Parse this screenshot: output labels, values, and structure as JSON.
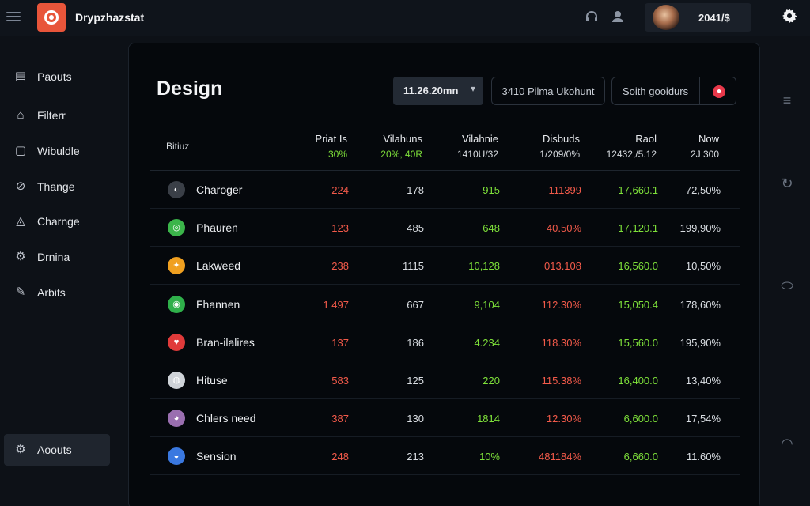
{
  "app": {
    "name": "Drypzhazstat"
  },
  "user": {
    "value": "2041/$"
  },
  "sidebar": {
    "items": [
      {
        "label": "Paouts",
        "icon": "document-icon"
      },
      {
        "label": "Filterr",
        "icon": "home-icon"
      },
      {
        "label": "Wibuldle",
        "icon": "folder-icon"
      },
      {
        "label": "Thange",
        "icon": "tag-icon"
      },
      {
        "label": "Charnge",
        "icon": "chart-icon"
      },
      {
        "label": "Drnina",
        "icon": "gear-icon"
      },
      {
        "label": "Arbits",
        "icon": "edit-icon"
      }
    ],
    "active": {
      "label": "Aoouts",
      "icon": "settings-icon"
    }
  },
  "main": {
    "title": "Design",
    "date_select": "11.26.20mn",
    "filter_button": "3410 Pilma Ukohunt",
    "search_text": "Soith gooidurs",
    "table": {
      "status_header": "Bitiuz",
      "columns": [
        {
          "label": "Priat Is",
          "sub": "30%",
          "sub_color": "green"
        },
        {
          "label": "Vilahuns",
          "sub": "20%, 40R",
          "sub_color": "green"
        },
        {
          "label": "Vilahnie",
          "sub": "1410U/32",
          "sub_color": "white"
        },
        {
          "label": "Disbuds",
          "sub": "1/209/0%",
          "sub_color": "white"
        },
        {
          "label": "Raol",
          "sub": "12432,/5.12",
          "sub_color": "white"
        },
        {
          "label": "Now",
          "sub": "2J 300",
          "sub_color": "white"
        }
      ],
      "rows": [
        {
          "name": "Charoger",
          "avatar_color": "#3a3f47",
          "avatar_glyph": "◐",
          "cells": [
            "224",
            "178",
            "915",
            "111399",
            "17,660.1",
            "72,50%"
          ],
          "colors": [
            "red",
            "white",
            "green",
            "red",
            "green",
            "white"
          ]
        },
        {
          "name": "Phauren",
          "avatar_color": "#3bb54a",
          "avatar_glyph": "◎",
          "cells": [
            "123",
            "485",
            "648",
            "40.50%",
            "17,120.1",
            "199,90%"
          ],
          "colors": [
            "red",
            "white",
            "green",
            "red",
            "green",
            "white"
          ]
        },
        {
          "name": "Lakweed",
          "avatar_color": "#f0a020",
          "avatar_glyph": "✦",
          "cells": [
            "238",
            "1115",
            "10,128",
            "013.108",
            "16,560.0",
            "10,50%"
          ],
          "colors": [
            "red",
            "white",
            "green",
            "red",
            "green",
            "white"
          ]
        },
        {
          "name": "Fhannen",
          "avatar_color": "#2fb04a",
          "avatar_glyph": "◉",
          "cells": [
            "1 497",
            "667",
            "9,104",
            "112.30%",
            "15,050.4",
            "178,60%"
          ],
          "colors": [
            "red",
            "white",
            "green",
            "red",
            "green",
            "white"
          ]
        },
        {
          "name": "Bran-ilalires",
          "avatar_color": "#e03a3a",
          "avatar_glyph": "♥",
          "cells": [
            "137",
            "186",
            "4.234",
            "118.30%",
            "15,560.0",
            "195,90%"
          ],
          "colors": [
            "red",
            "white",
            "green",
            "red",
            "green",
            "white"
          ]
        },
        {
          "name": "Hituse",
          "avatar_color": "#cfd3d8",
          "avatar_glyph": "◍",
          "cells": [
            "583",
            "125",
            "220",
            "115.38%",
            "16,400.0",
            "13,40%"
          ],
          "colors": [
            "red",
            "white",
            "green",
            "red",
            "green",
            "white"
          ]
        },
        {
          "name": "Chlers need",
          "avatar_color": "#9a6fb0",
          "avatar_glyph": "◕",
          "cells": [
            "387",
            "130",
            "1814",
            "12.30%",
            "6,600.0",
            "17,54%"
          ],
          "colors": [
            "red",
            "white",
            "green",
            "red",
            "green",
            "white"
          ]
        },
        {
          "name": "Sension",
          "avatar_color": "#3a78e0",
          "avatar_glyph": "◒",
          "cells": [
            "248",
            "213",
            "10%",
            "481184%",
            "6,660.0",
            "11.60%"
          ],
          "colors": [
            "red",
            "white",
            "green",
            "red",
            "green",
            "white"
          ]
        }
      ]
    }
  },
  "colors": {
    "accent": "#e8553a",
    "positive": "#7ee03a",
    "negative": "#f25a4a",
    "background": "#0d1117"
  }
}
